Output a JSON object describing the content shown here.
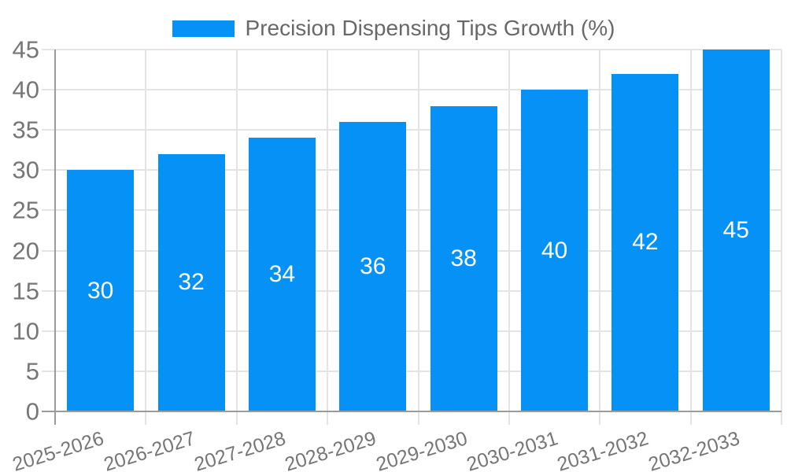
{
  "chart_data": {
    "type": "bar",
    "title": "",
    "legend_label": "Precision Dispensing Tips Growth (%)",
    "legend_position": "top",
    "categories": [
      "2025-2026",
      "2026-2027",
      "2027-2028",
      "2028-2029",
      "2029-2030",
      "2030-2031",
      "2031-2032",
      "2032-2033"
    ],
    "values": [
      30,
      32,
      34,
      36,
      38,
      40,
      42,
      45
    ],
    "xlabel": "",
    "ylabel": "",
    "ylim": [
      0,
      45
    ],
    "yticks": [
      0,
      5,
      10,
      15,
      20,
      25,
      30,
      35,
      40,
      45
    ],
    "grid": true,
    "bar_value_labels_inside": true,
    "x_label_rotation_deg": -17,
    "colors": {
      "bar": "#0591f5",
      "bar_label": "#ffffff",
      "grid": "#e4e4e4",
      "axis": "#9b9b9b",
      "tick_text": "#767676",
      "legend_text": "#686868",
      "background": "#ffffff"
    }
  }
}
